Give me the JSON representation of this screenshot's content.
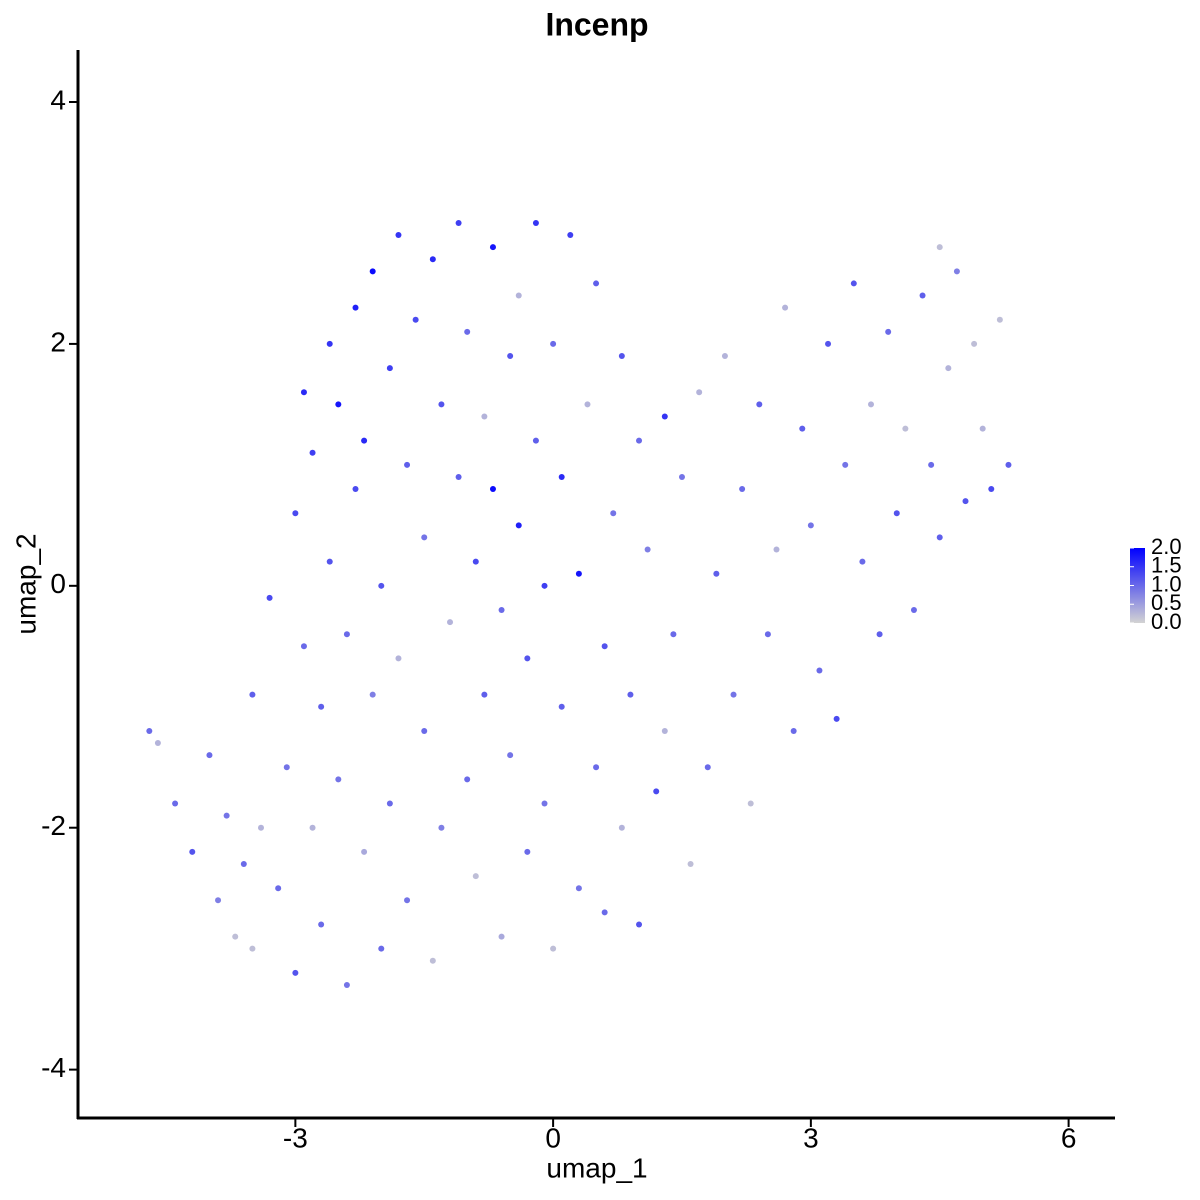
{
  "chart_data": {
    "type": "scatter",
    "title": "Incenp",
    "xlabel": "umap_1",
    "ylabel": "umap_2",
    "xlim": [
      -5.53,
      6.54
    ],
    "xticks": [
      -3,
      0,
      3,
      6
    ],
    "ylim": [
      -4.4,
      4.43
    ],
    "yticks": [
      -4,
      -2,
      0,
      2,
      4
    ],
    "x": [
      -4.7,
      -4.6,
      -4.4,
      -4.2,
      -4.0,
      -3.9,
      -3.8,
      -3.7,
      -3.6,
      -3.5,
      -3.5,
      -3.4,
      -3.3,
      -3.2,
      -3.1,
      -3.0,
      -3.0,
      -2.9,
      -2.9,
      -2.8,
      -2.8,
      -2.7,
      -2.7,
      -2.6,
      -2.6,
      -2.5,
      -2.5,
      -2.4,
      -2.4,
      -2.3,
      -2.3,
      -2.2,
      -2.2,
      -2.1,
      -2.1,
      -2.0,
      -2.0,
      -1.9,
      -1.9,
      -1.8,
      -1.8,
      -1.7,
      -1.7,
      -1.6,
      -1.5,
      -1.5,
      -1.4,
      -1.4,
      -1.3,
      -1.3,
      -1.2,
      -1.1,
      -1.1,
      -1.0,
      -1.0,
      -0.9,
      -0.9,
      -0.8,
      -0.8,
      -0.7,
      -0.7,
      -0.6,
      -0.6,
      -0.5,
      -0.5,
      -0.4,
      -0.4,
      -0.3,
      -0.3,
      -0.2,
      -0.2,
      -0.1,
      -0.1,
      0.0,
      0.0,
      0.1,
      0.1,
      0.2,
      0.3,
      0.3,
      0.4,
      0.5,
      0.5,
      0.6,
      0.6,
      0.7,
      0.8,
      0.8,
      0.9,
      1.0,
      1.0,
      1.1,
      1.2,
      1.3,
      1.3,
      1.4,
      1.5,
      1.6,
      1.7,
      1.8,
      1.9,
      2.0,
      2.1,
      2.2,
      2.3,
      2.4,
      2.5,
      2.6,
      2.7,
      2.8,
      2.9,
      3.0,
      3.1,
      3.2,
      3.3,
      3.4,
      3.5,
      3.6,
      3.7,
      3.8,
      3.9,
      4.0,
      4.1,
      4.2,
      4.3,
      4.4,
      4.5,
      4.5,
      4.6,
      4.7,
      4.8,
      4.9,
      5.0,
      5.1,
      5.2,
      5.3
    ],
    "y": [
      -1.2,
      -1.3,
      -1.8,
      -2.2,
      -1.4,
      -2.6,
      -1.9,
      -2.9,
      -2.3,
      -0.9,
      -3.0,
      -2.0,
      -0.1,
      -2.5,
      -1.5,
      -3.2,
      0.6,
      1.6,
      -0.5,
      -2.0,
      1.1,
      -1.0,
      -2.8,
      0.2,
      2.0,
      -1.6,
      1.5,
      -3.3,
      -0.4,
      2.3,
      0.8,
      -2.2,
      1.2,
      -0.9,
      2.6,
      -3.0,
      0.0,
      1.8,
      -1.8,
      2.9,
      -0.6,
      1.0,
      -2.6,
      2.2,
      -1.2,
      0.4,
      -3.1,
      2.7,
      1.5,
      -2.0,
      -0.3,
      0.9,
      3.0,
      -1.6,
      2.1,
      -2.4,
      0.2,
      1.4,
      -0.9,
      2.8,
      0.8,
      -2.9,
      -0.2,
      1.9,
      -1.4,
      0.5,
      2.4,
      -2.2,
      -0.6,
      1.2,
      3.0,
      -1.8,
      0.0,
      2.0,
      -3.0,
      -1.0,
      0.9,
      2.9,
      -2.5,
      0.1,
      1.5,
      -1.5,
      2.5,
      -0.5,
      -2.7,
      0.6,
      1.9,
      -2.0,
      -0.9,
      1.2,
      -2.8,
      0.3,
      -1.7,
      1.4,
      -1.2,
      -0.4,
      0.9,
      -2.3,
      1.6,
      -1.5,
      0.1,
      1.9,
      -0.9,
      0.8,
      -1.8,
      1.5,
      -0.4,
      0.3,
      2.3,
      -1.2,
      1.3,
      0.5,
      -0.7,
      2.0,
      -1.1,
      1.0,
      2.5,
      0.2,
      1.5,
      -0.4,
      2.1,
      0.6,
      1.3,
      -0.2,
      2.4,
      1.0,
      2.8,
      0.4,
      1.8,
      2.6,
      0.7,
      2.0,
      1.3,
      0.8,
      2.2,
      1.0
    ],
    "expression": [
      1.0,
      0.3,
      1.0,
      1.2,
      1.0,
      0.8,
      0.9,
      0.2,
      1.0,
      1.1,
      0.2,
      0.3,
      1.3,
      1.0,
      0.9,
      1.2,
      1.3,
      1.6,
      1.0,
      0.3,
      1.4,
      1.1,
      1.0,
      1.2,
      1.5,
      0.9,
      1.8,
      0.9,
      1.0,
      1.7,
      1.3,
      0.4,
      1.6,
      0.8,
      1.9,
      1.0,
      1.2,
      1.4,
      1.0,
      1.5,
      0.3,
      1.1,
      0.9,
      1.3,
      1.0,
      0.9,
      0.2,
      1.6,
      1.2,
      0.8,
      0.3,
      1.1,
      1.4,
      1.0,
      1.0,
      0.2,
      1.3,
      0.3,
      1.1,
      1.8,
      1.9,
      0.4,
      1.0,
      1.2,
      0.9,
      1.7,
      0.3,
      1.0,
      1.2,
      1.1,
      1.5,
      0.9,
      1.4,
      1.0,
      0.2,
      1.1,
      1.6,
      1.4,
      0.9,
      1.8,
      0.3,
      1.0,
      1.1,
      1.2,
      1.0,
      0.9,
      1.2,
      0.3,
      1.1,
      1.0,
      1.2,
      0.8,
      1.3,
      1.5,
      0.3,
      1.0,
      0.9,
      0.2,
      0.3,
      1.0,
      1.1,
      0.3,
      0.9,
      1.0,
      0.2,
      1.1,
      1.0,
      0.3,
      0.3,
      1.0,
      1.1,
      0.9,
      1.0,
      1.2,
      1.3,
      0.9,
      1.2,
      1.0,
      0.3,
      1.1,
      1.0,
      1.2,
      0.2,
      1.0,
      1.1,
      1.0,
      0.2,
      1.1,
      0.3,
      0.8,
      1.2,
      0.2,
      0.3,
      1.3,
      0.2,
      1.1
    ],
    "colorbar": {
      "colors": [
        "#d3d3d3",
        "#0000ff"
      ],
      "lim": [
        0,
        2
      ],
      "ticks": [
        {
          "value": 0,
          "label": "0.0"
        },
        {
          "value": 0.5,
          "label": "0.5"
        },
        {
          "value": 1,
          "label": "1.0"
        },
        {
          "value": 1.5,
          "label": "1.5"
        },
        {
          "value": 2,
          "label": "2.0"
        }
      ]
    }
  }
}
